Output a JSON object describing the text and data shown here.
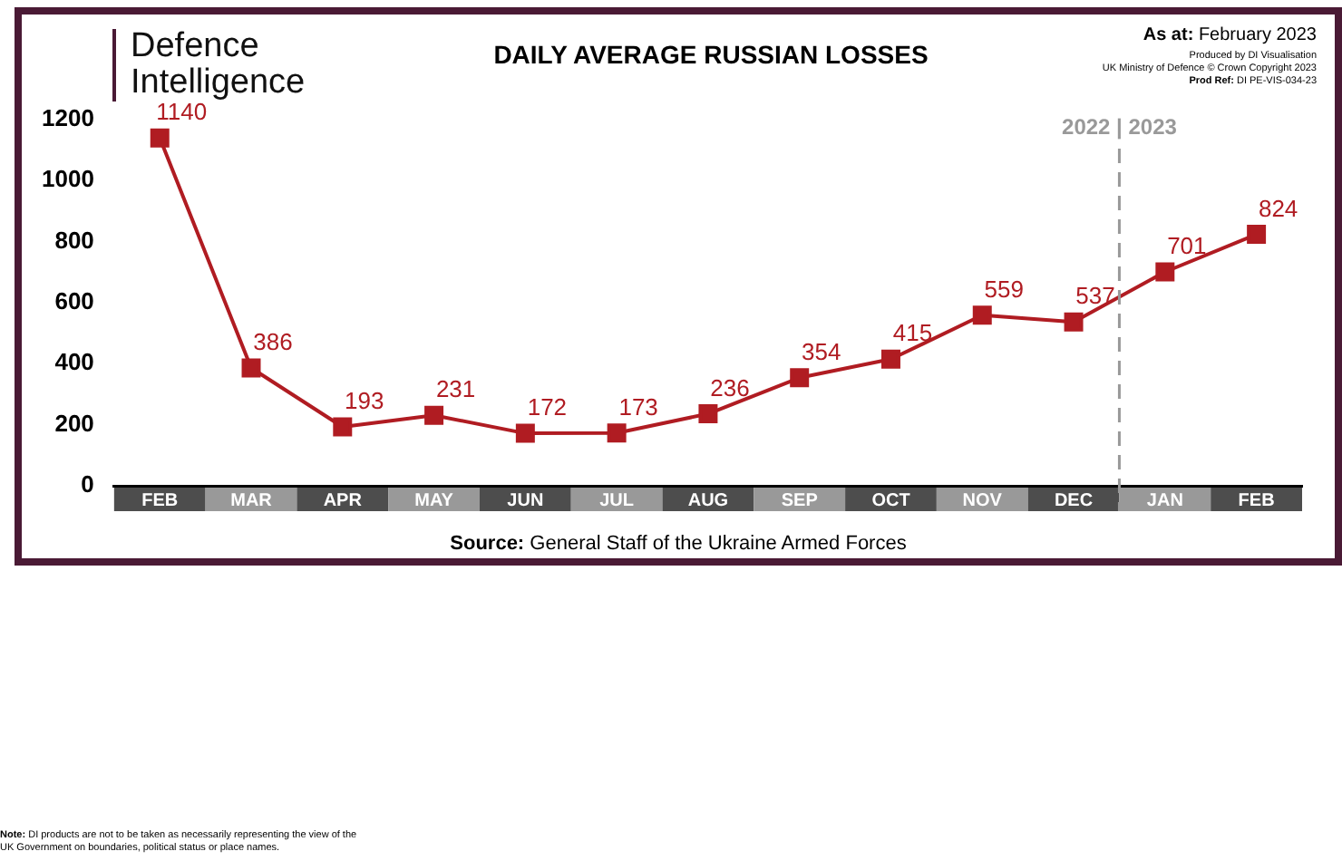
{
  "chart_data": {
    "type": "line",
    "title": "DAILY AVERAGE RUSSIAN LOSSES",
    "categories": [
      "FEB",
      "MAR",
      "APR",
      "MAY",
      "JUN",
      "JUL",
      "AUG",
      "SEP",
      "OCT",
      "NOV",
      "DEC",
      "JAN",
      "FEB"
    ],
    "series": [
      {
        "color": "#b01c22",
        "values": [
          1140,
          386,
          193,
          231,
          172,
          173,
          236,
          354,
          415,
          559,
          537,
          701,
          824
        ]
      }
    ],
    "ylim": [
      0,
      1200
    ],
    "yticks": [
      0,
      200,
      400,
      600,
      800,
      1000,
      1200
    ],
    "grid": false,
    "legend": false,
    "marker": "square",
    "line_style": "solid",
    "data_labels": true,
    "annotations": [
      "Defence Intelligence",
      "As at: February 2023",
      "Produced by DI Visualisation",
      "UK Ministry of Defence © Crown Copyright 2023",
      "Prod Ref: DI PE-VIS-034-23",
      "2022 | 2023",
      "Source: General Staff of the Ukraine Armed Forces",
      "Note: DI products are not to be taken as necessarily representing the view of the UK Government on boundaries, political status or place names."
    ]
  }
}
